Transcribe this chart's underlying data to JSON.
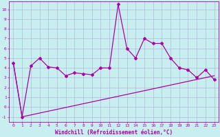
{
  "xlabel": "Windchill (Refroidissement éolien,°C)",
  "background_color": "#c8eef0",
  "grid_color": "#b0b8d8",
  "line_color": "#aa00aa",
  "xlim": [
    -0.5,
    23.5
  ],
  "ylim": [
    -1.5,
    10.8
  ],
  "yticks": [
    -1,
    0,
    1,
    2,
    3,
    4,
    5,
    6,
    7,
    8,
    9,
    10
  ],
  "xticks": [
    0,
    1,
    2,
    3,
    4,
    5,
    6,
    7,
    8,
    9,
    10,
    11,
    12,
    13,
    14,
    15,
    16,
    17,
    18,
    19,
    20,
    21,
    22,
    23
  ],
  "series1_x": [
    0,
    1,
    2,
    3,
    4,
    5,
    6,
    7,
    8,
    9,
    10,
    11,
    12,
    13,
    14,
    15,
    16,
    17,
    18,
    19,
    20,
    21,
    22,
    23
  ],
  "series1_y": [
    4.5,
    -1.0,
    4.2,
    5.0,
    4.1,
    4.0,
    3.2,
    3.5,
    3.4,
    3.3,
    4.0,
    4.0,
    10.5,
    6.0,
    5.0,
    7.0,
    6.5,
    6.5,
    5.0,
    4.0,
    3.8,
    3.0,
    3.8,
    2.8
  ],
  "series2_x": [
    0,
    1,
    23
  ],
  "series2_y": [
    4.5,
    -1.0,
    3.2
  ],
  "ticker_fontsize": 4.5,
  "xlabel_fontsize": 5.5
}
